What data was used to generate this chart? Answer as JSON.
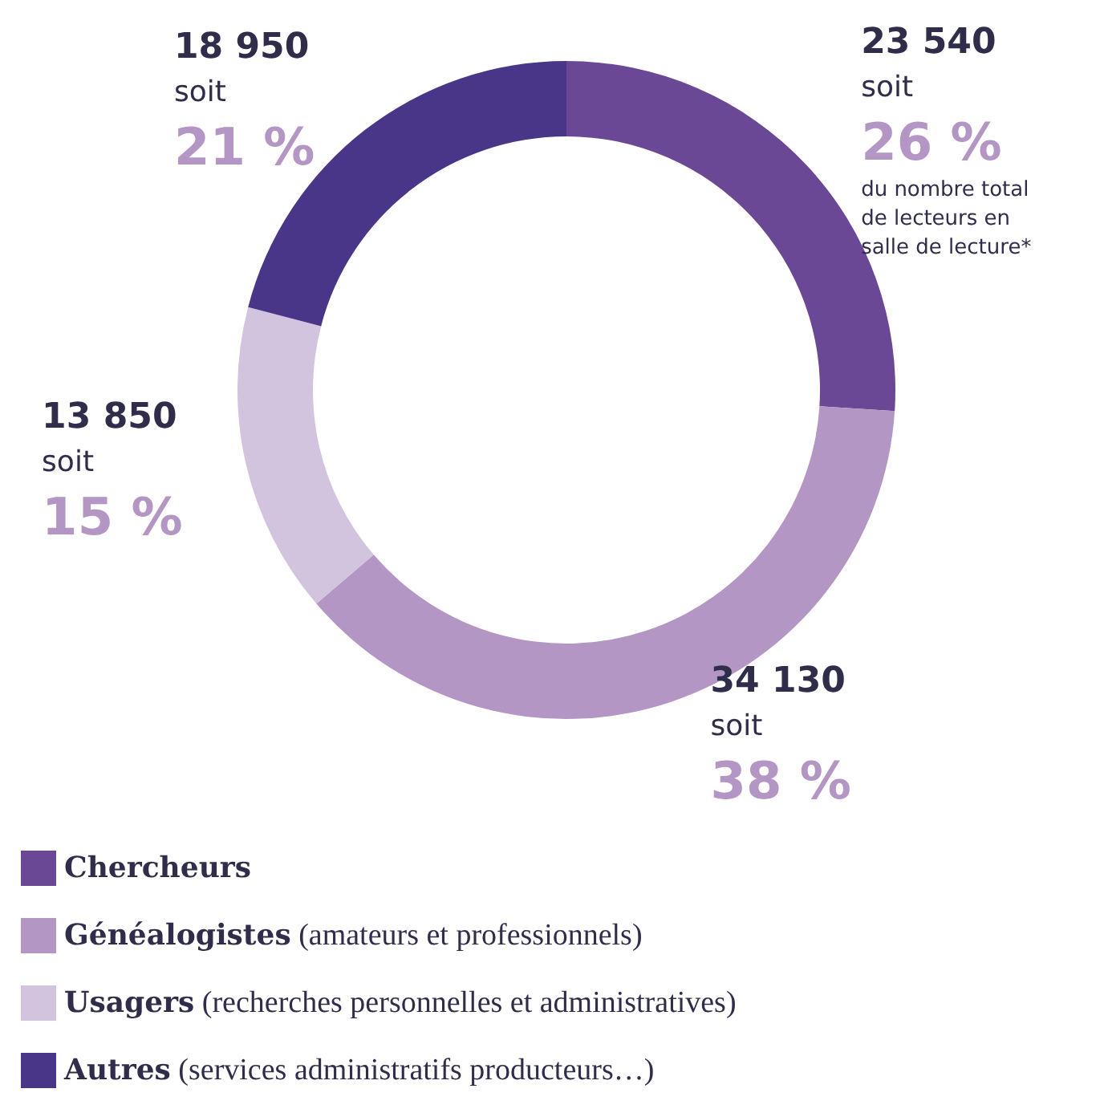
{
  "chart_data": {
    "type": "donut",
    "categories": [
      "Chercheurs",
      "Généalogistes (amateurs et professionnels)",
      "Usagers (recherches personnelles et administratives)",
      "Autres (services administratifs producteurs…)"
    ],
    "values": [
      23540,
      34130,
      13850,
      18950
    ],
    "colors": [
      "#6b4896",
      "#b396c4",
      "#d2c3df",
      "#4a3688"
    ],
    "value_labels": [
      "23 540\nsoit\n26 %\ndu nombre total\nde lecteurs en\nsalle de lecture*",
      "34 130\nsoit\n38 %",
      "13 850\nsoit\n15 %",
      "18 950\nsoit\n21 %"
    ],
    "legend": "bottom"
  }
}
